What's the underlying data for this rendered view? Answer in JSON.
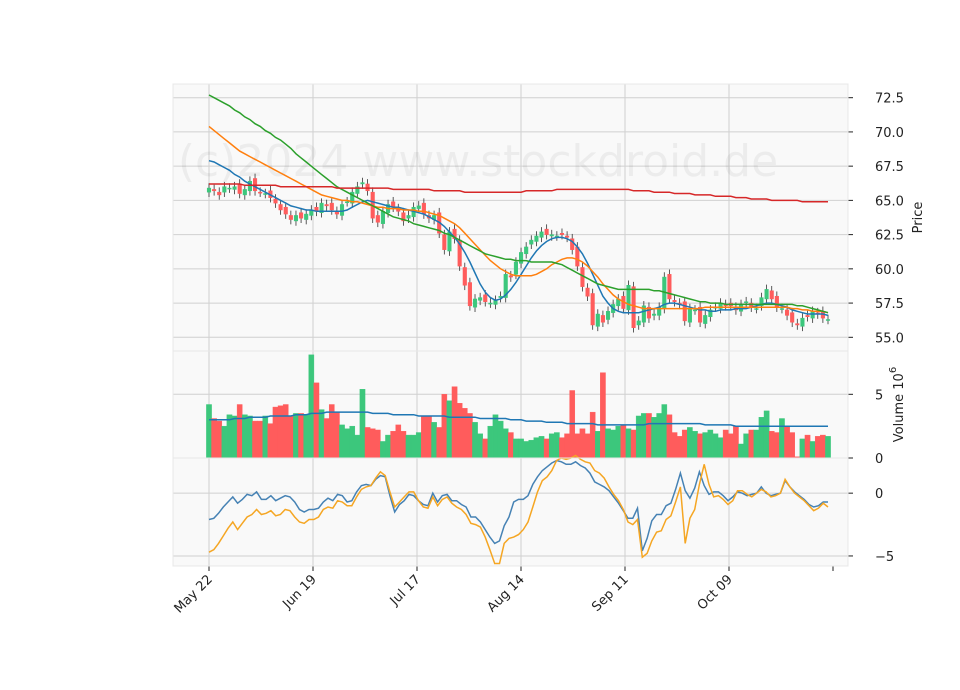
{
  "watermark": "(c)2024 www.stockdroid.de",
  "chart_data": {
    "type": "candlestick",
    "x_tick_labels": [
      "May 22",
      "Jun 19",
      "Jul 17",
      "Aug 14",
      "Sep 11",
      "Oct 09"
    ],
    "x_tick_days": [
      0,
      20,
      40,
      60,
      80,
      100
    ],
    "price_panel": {
      "ylabel": "Price",
      "yticks": [
        "72.5",
        "70.0",
        "67.5",
        "65.0",
        "62.5",
        "60.0",
        "57.5",
        "55.0"
      ],
      "ylim": [
        54.0,
        73.5
      ],
      "close": [
        65.9,
        65.7,
        65.4,
        66.0,
        65.9,
        66.0,
        65.5,
        65.8,
        66.4,
        65.7,
        65.6,
        65.5,
        65.2,
        64.8,
        64.3,
        64.0,
        63.6,
        63.9,
        63.7,
        64.0,
        64.3,
        64.2,
        64.8,
        64.6,
        64.3,
        64.0,
        64.7,
        64.9,
        65.6,
        66.0,
        66.3,
        65.7,
        63.7,
        63.4,
        64.2,
        64.7,
        64.5,
        64.2,
        63.5,
        63.9,
        64.5,
        64.6,
        64.0,
        63.7,
        63.9,
        62.6,
        61.4,
        62.7,
        62.2,
        60.2,
        58.8,
        57.3,
        57.8,
        57.9,
        57.6,
        57.5,
        57.7,
        58.0,
        59.6,
        59.4,
        60.5,
        61.2,
        61.6,
        62.1,
        62.4,
        62.7,
        62.5,
        62.5,
        62.4,
        62.5,
        62.3,
        61.4,
        60.2,
        58.7,
        58.0,
        55.9,
        56.7,
        56.1,
        56.9,
        57.4,
        57.8,
        57.1,
        58.8,
        55.7,
        56.2,
        57.3,
        56.4,
        56.7,
        57.2,
        59.4,
        57.8,
        57.6,
        57.4,
        56.2,
        57.1,
        57.0,
        56.1,
        56.6,
        57.0,
        57.2,
        57.5,
        57.3,
        57.3,
        57.0,
        57.4,
        57.6,
        57.2,
        57.1,
        57.9,
        58.5,
        57.8,
        57.2,
        57.1,
        56.6,
        56.1,
        55.9,
        56.4,
        56.5,
        56.9,
        56.7,
        56.4,
        56.3
      ],
      "moving_averages": [
        {
          "color": "#1f77b4",
          "values": [
            67.9,
            67.8,
            67.6,
            67.4,
            67.2,
            66.9,
            66.7,
            66.4,
            66.2,
            66.0,
            65.8,
            65.6,
            65.4,
            65.2,
            65.0,
            64.8,
            64.6,
            64.5,
            64.4,
            64.3,
            64.3,
            64.2,
            64.2,
            64.2,
            64.2,
            64.2,
            64.2,
            64.3,
            64.5,
            64.7,
            64.9,
            65.0,
            64.9,
            64.8,
            64.7,
            64.6,
            64.5,
            64.5,
            64.4,
            64.3,
            64.2,
            64.1,
            64.0,
            63.8,
            63.6,
            63.4,
            63.1,
            62.7,
            62.3,
            61.8,
            61.2,
            60.5,
            59.7,
            58.9,
            58.3,
            57.9,
            57.7,
            57.8,
            58.1,
            58.5,
            59.0,
            59.6,
            60.2,
            60.8,
            61.3,
            61.7,
            62.0,
            62.2,
            62.3,
            62.3,
            62.2,
            62.0,
            61.6,
            61.1,
            60.4,
            59.6,
            58.8,
            58.0,
            57.5,
            57.1,
            56.9,
            56.8,
            56.8,
            56.8,
            56.8,
            56.9,
            57.0,
            57.1,
            57.2,
            57.4,
            57.5,
            57.5,
            57.4,
            57.3,
            57.2,
            57.1,
            57.0,
            57.0,
            56.9,
            56.9,
            57.0,
            57.0,
            57.0,
            57.1,
            57.1,
            57.1,
            57.2,
            57.3,
            57.4,
            57.5,
            57.5,
            57.4,
            57.3,
            57.2,
            57.0,
            56.9,
            56.8,
            56.7,
            56.7,
            56.7,
            56.7,
            56.6
          ]
        },
        {
          "color": "#ff7f0e",
          "values": [
            70.4,
            70.1,
            69.8,
            69.5,
            69.2,
            68.9,
            68.6,
            68.4,
            68.2,
            68.0,
            67.8,
            67.6,
            67.4,
            67.2,
            67.0,
            66.8,
            66.6,
            66.4,
            66.2,
            66.0,
            65.8,
            65.6,
            65.4,
            65.3,
            65.2,
            65.1,
            65.0,
            65.0,
            64.9,
            64.9,
            64.8,
            64.7,
            64.6,
            64.5,
            64.5,
            64.4,
            64.4,
            64.4,
            64.3,
            64.3,
            64.3,
            64.2,
            64.2,
            64.1,
            64.0,
            63.9,
            63.7,
            63.5,
            63.3,
            63.0,
            62.6,
            62.2,
            61.8,
            61.4,
            61.0,
            60.6,
            60.3,
            60.0,
            59.8,
            59.6,
            59.5,
            59.5,
            59.5,
            59.5,
            59.6,
            59.8,
            60.0,
            60.3,
            60.5,
            60.7,
            60.8,
            60.8,
            60.7,
            60.5,
            60.2,
            59.8,
            59.4,
            58.9,
            58.5,
            58.1,
            57.8,
            57.6,
            57.4,
            57.3,
            57.2,
            57.1,
            57.1,
            57.1,
            57.1,
            57.1,
            57.1,
            57.1,
            57.1,
            57.1,
            57.1,
            57.1,
            57.1,
            57.2,
            57.2,
            57.2,
            57.2,
            57.2,
            57.2,
            57.2,
            57.2,
            57.2,
            57.2,
            57.2,
            57.2,
            57.2,
            57.2,
            57.2,
            57.2,
            57.2,
            57.1,
            57.1,
            57.0,
            57.0,
            56.9,
            56.9,
            56.9,
            56.8
          ]
        },
        {
          "color": "#2ca02c",
          "values": [
            72.7,
            72.5,
            72.3,
            72.1,
            71.9,
            71.6,
            71.4,
            71.1,
            70.9,
            70.6,
            70.4,
            70.1,
            69.9,
            69.6,
            69.4,
            69.1,
            68.8,
            68.4,
            68.1,
            67.8,
            67.5,
            67.2,
            66.9,
            66.6,
            66.3,
            66.0,
            65.8,
            65.6,
            65.4,
            65.2,
            65.0,
            64.8,
            64.6,
            64.4,
            64.2,
            64.0,
            63.8,
            63.7,
            63.6,
            63.5,
            63.3,
            63.2,
            63.1,
            63.0,
            62.9,
            62.8,
            62.6,
            62.5,
            62.3,
            62.1,
            61.9,
            61.7,
            61.5,
            61.3,
            61.1,
            61.0,
            60.9,
            60.8,
            60.7,
            60.7,
            60.6,
            60.6,
            60.6,
            60.5,
            60.5,
            60.5,
            60.5,
            60.5,
            60.4,
            60.3,
            60.1,
            59.9,
            59.7,
            59.5,
            59.3,
            59.1,
            58.9,
            58.8,
            58.7,
            58.6,
            58.5,
            58.5,
            58.5,
            58.5,
            58.5,
            58.5,
            58.5,
            58.4,
            58.4,
            58.3,
            58.2,
            58.1,
            58.0,
            57.9,
            57.8,
            57.7,
            57.6,
            57.6,
            57.5,
            57.5,
            57.5,
            57.4,
            57.4,
            57.4,
            57.4,
            57.4,
            57.4,
            57.4,
            57.4,
            57.4,
            57.4,
            57.4,
            57.4,
            57.4,
            57.4,
            57.3,
            57.3,
            57.2,
            57.1,
            57.0,
            56.9,
            56.8
          ]
        },
        {
          "color": "#d62728",
          "values": [
            66.2,
            66.2,
            66.2,
            66.2,
            66.2,
            66.2,
            66.2,
            66.1,
            66.1,
            66.1,
            66.1,
            66.1,
            66.1,
            66.1,
            66.0,
            66.0,
            66.0,
            66.0,
            66.0,
            66.0,
            66.0,
            66.0,
            66.0,
            66.0,
            66.0,
            65.9,
            65.9,
            65.9,
            65.9,
            65.9,
            65.9,
            65.9,
            65.9,
            65.9,
            65.9,
            65.9,
            65.8,
            65.8,
            65.8,
            65.8,
            65.8,
            65.8,
            65.8,
            65.8,
            65.7,
            65.7,
            65.7,
            65.7,
            65.7,
            65.7,
            65.6,
            65.6,
            65.6,
            65.6,
            65.6,
            65.6,
            65.6,
            65.6,
            65.6,
            65.6,
            65.6,
            65.6,
            65.7,
            65.7,
            65.7,
            65.7,
            65.7,
            65.7,
            65.8,
            65.8,
            65.8,
            65.8,
            65.8,
            65.8,
            65.8,
            65.8,
            65.8,
            65.8,
            65.8,
            65.8,
            65.8,
            65.8,
            65.8,
            65.7,
            65.7,
            65.7,
            65.7,
            65.6,
            65.6,
            65.6,
            65.6,
            65.5,
            65.5,
            65.5,
            65.5,
            65.4,
            65.4,
            65.4,
            65.4,
            65.3,
            65.3,
            65.3,
            65.3,
            65.2,
            65.2,
            65.2,
            65.1,
            65.1,
            65.1,
            65.1,
            65.0,
            65.0,
            65.0,
            65.0,
            65.0,
            65.0,
            64.9,
            64.9,
            64.9,
            64.9,
            64.9,
            64.9
          ]
        }
      ]
    },
    "volume_panel": {
      "ylabel": "Volume  10^6",
      "ylabel_text": "Volume",
      "ylabel_exp": "6",
      "ylabel_base": "10",
      "yticks": [
        "5",
        "0"
      ],
      "ylim": [
        0,
        8.4
      ],
      "values": [
        4.2,
        3.1,
        2.9,
        2.5,
        3.4,
        3.3,
        4.2,
        3.4,
        3.3,
        2.9,
        2.9,
        3.3,
        2.7,
        4.0,
        4.1,
        4.2,
        3.3,
        3.5,
        3.5,
        3.4,
        8.1,
        5.9,
        3.8,
        3.1,
        4.2,
        3.6,
        2.6,
        2.3,
        2.5,
        1.8,
        5.4,
        2.4,
        2.3,
        2.2,
        1.3,
        1.8,
        2.1,
        2.6,
        2.1,
        1.8,
        1.8,
        2.0,
        3.3,
        3.3,
        2.8,
        2.4,
        5.0,
        4.5,
        5.6,
        4.3,
        3.9,
        3.5,
        2.8,
        1.9,
        1.5,
        2.5,
        3.4,
        2.9,
        2.3,
        2.0,
        1.5,
        1.5,
        1.3,
        1.4,
        1.6,
        1.7,
        1.5,
        1.9,
        2.0,
        1.6,
        1.9,
        5.3,
        1.9,
        2.3,
        1.9,
        3.6,
        2.1,
        6.7,
        2.3,
        2.2,
        2.5,
        2.6,
        2.3,
        2.2,
        3.3,
        3.5,
        3.5,
        3.2,
        3.5,
        4.2,
        3.4,
        2.0,
        1.7,
        2.2,
        2.4,
        2.1,
        1.9,
        2.0,
        2.2,
        1.9,
        1.6,
        2.2,
        1.9,
        2.5,
        1.1,
        1.9,
        2.2,
        2.2,
        3.2,
        3.7,
        2.1,
        2.0,
        3.1,
        2.5,
        2.0,
        0.1,
        1.5,
        1.8,
        1.3,
        1.7,
        1.8,
        1.7
      ],
      "colors_up": "#3cc77c",
      "colors_down": "#ff5c5c",
      "avg": [
        3.0,
        3.0,
        3.0,
        3.0,
        3.0,
        3.1,
        3.1,
        3.1,
        3.2,
        3.2,
        3.2,
        3.2,
        3.3,
        3.3,
        3.3,
        3.3,
        3.3,
        3.4,
        3.4,
        3.4,
        3.5,
        3.5,
        3.5,
        3.6,
        3.6,
        3.6,
        3.6,
        3.6,
        3.6,
        3.6,
        3.6,
        3.6,
        3.5,
        3.5,
        3.5,
        3.5,
        3.4,
        3.4,
        3.4,
        3.4,
        3.4,
        3.3,
        3.3,
        3.3,
        3.3,
        3.3,
        3.3,
        3.2,
        3.2,
        3.2,
        3.2,
        3.2,
        3.2,
        3.1,
        3.1,
        3.1,
        3.1,
        3.1,
        3.1,
        3.0,
        3.0,
        3.0,
        2.9,
        2.9,
        2.9,
        2.9,
        2.8,
        2.8,
        2.8,
        2.8,
        2.7,
        2.7,
        2.7,
        2.7,
        2.7,
        2.7,
        2.6,
        2.6,
        2.6,
        2.6,
        2.6,
        2.6,
        2.6,
        2.6,
        2.6,
        2.6,
        2.7,
        2.7,
        2.7,
        2.7,
        2.7,
        2.7,
        2.7,
        2.7,
        2.7,
        2.7,
        2.7,
        2.6,
        2.6,
        2.6,
        2.6,
        2.6,
        2.6,
        2.5,
        2.5,
        2.5,
        2.5,
        2.5,
        2.5,
        2.5,
        2.5,
        2.5,
        2.5,
        2.5,
        2.5,
        2.5,
        2.5,
        2.5,
        2.5,
        2.5,
        2.5,
        2.5
      ]
    },
    "oscillator_panel": {
      "yticks": [
        "0",
        "−5"
      ],
      "ylim": [
        -5.8,
        2.8
      ],
      "series": [
        {
          "color": "#4682b4",
          "values": [
            -2.1,
            -2.0,
            -1.6,
            -1.1,
            -0.7,
            -0.3,
            -0.8,
            -0.5,
            -0.1,
            -0.2,
            0.1,
            -0.5,
            -0.5,
            -0.2,
            -0.6,
            -0.4,
            -0.2,
            -0.3,
            -0.7,
            -1.3,
            -1.5,
            -1.3,
            -1.3,
            -1.2,
            -0.7,
            -0.4,
            -0.6,
            -0.1,
            -0.2,
            -0.7,
            -0.6,
            0.1,
            0.6,
            0.7,
            0.6,
            1.1,
            1.4,
            1.3,
            -0.2,
            -1.5,
            -0.9,
            -0.6,
            -0.1,
            -0.2,
            -0.6,
            -0.9,
            -1.0,
            0.0,
            -0.7,
            -0.2,
            -0.1,
            -0.6,
            -0.6,
            -0.9,
            -1.1,
            -1.9,
            -1.9,
            -2.3,
            -2.9,
            -3.5,
            -4.0,
            -3.8,
            -2.6,
            -1.9,
            -0.7,
            -0.5,
            -0.5,
            -0.2,
            0.7,
            1.3,
            1.8,
            2.1,
            2.4,
            2.6,
            2.5,
            2.3,
            2.3,
            2.5,
            2.2,
            2.0,
            1.6,
            0.9,
            0.7,
            0.5,
            0.2,
            -0.3,
            -0.8,
            -1.4,
            -2.0,
            -2.0,
            -1.2,
            -4.6,
            -3.6,
            -2.2,
            -1.7,
            -1.7,
            -1.0,
            -0.8,
            0.3,
            1.6,
            0.2,
            -0.4,
            0.4,
            1.7,
            0.6,
            -0.1,
            0.1,
            0.1,
            -0.2,
            -0.6,
            -0.3,
            0.1,
            0.0,
            -0.2,
            -0.1,
            0.0,
            0.5,
            0.0,
            -0.2,
            -0.1,
            0.0,
            1.0,
            0.5,
            0.1,
            -0.2,
            -0.5,
            -0.9,
            -1.1,
            -1.0,
            -0.7,
            -0.7
          ]
        },
        {
          "color": "#f5a623",
          "values": [
            -4.7,
            -4.5,
            -4.0,
            -3.4,
            -2.8,
            -2.3,
            -2.9,
            -2.4,
            -1.9,
            -1.7,
            -1.3,
            -1.7,
            -1.6,
            -1.4,
            -1.8,
            -1.7,
            -1.3,
            -1.4,
            -1.9,
            -2.3,
            -2.4,
            -2.1,
            -2.1,
            -1.9,
            -1.3,
            -1.1,
            -1.2,
            -0.6,
            -0.7,
            -1.0,
            -1.0,
            -0.3,
            0.3,
            0.5,
            0.6,
            1.2,
            1.7,
            1.4,
            0.1,
            -1.1,
            -0.7,
            -0.3,
            0.1,
            0.1,
            -0.6,
            -1.1,
            -1.2,
            -0.3,
            -1.0,
            -0.5,
            -0.3,
            -0.8,
            -1.1,
            -1.3,
            -1.7,
            -2.4,
            -2.5,
            -2.7,
            -3.5,
            -4.5,
            -5.6,
            -5.6,
            -4.0,
            -3.6,
            -3.5,
            -3.3,
            -2.9,
            -2.3,
            -1.1,
            0.1,
            1.0,
            1.3,
            1.8,
            2.6,
            2.8,
            2.7,
            2.8,
            3.0,
            2.7,
            2.5,
            2.4,
            1.8,
            1.6,
            1.2,
            0.5,
            -0.1,
            -0.6,
            -1.3,
            -2.3,
            -2.5,
            -2.1,
            -5.1,
            -4.8,
            -3.8,
            -3.1,
            -3.0,
            -2.1,
            -1.8,
            -0.7,
            0.5,
            -4.0,
            -2.0,
            -1.3,
            0.7,
            2.3,
            0.7,
            -0.3,
            -0.2,
            -0.5,
            -0.9,
            -0.6,
            0.2,
            0.2,
            -0.1,
            -0.3,
            0.0,
            0.3,
            0.1,
            -0.3,
            -0.2,
            0.0,
            1.1,
            0.5,
            0.0,
            -0.3,
            -0.6,
            -1.0,
            -1.4,
            -1.2,
            -0.8,
            -1.1
          ]
        }
      ]
    },
    "grid": true,
    "legend": "none"
  }
}
